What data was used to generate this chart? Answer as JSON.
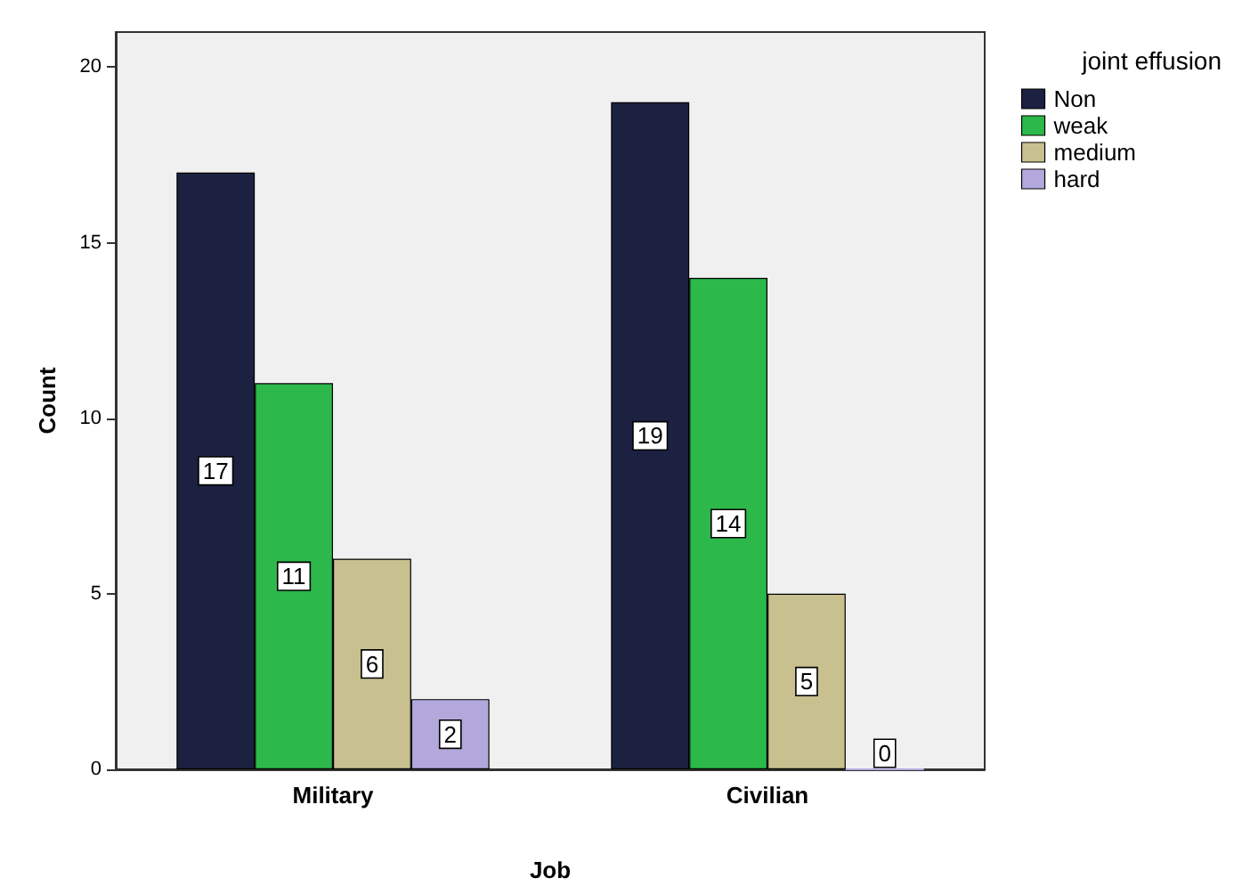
{
  "chart_data": {
    "type": "bar",
    "xlabel": "Job",
    "ylabel": "Count",
    "legend_title": "joint effusion",
    "categories": [
      "Military",
      "Civilian"
    ],
    "series": [
      {
        "name": "Non",
        "color": "#1c2142",
        "values": [
          17,
          19
        ]
      },
      {
        "name": "weak",
        "color": "#2cb84a",
        "values": [
          11,
          14
        ]
      },
      {
        "name": "medium",
        "color": "#c8c18f",
        "values": [
          6,
          5
        ]
      },
      {
        "name": "hard",
        "color": "#b3a8dc",
        "values": [
          2,
          0
        ]
      }
    ],
    "ylim": [
      0,
      21
    ],
    "yticks": [
      0,
      5,
      10,
      15,
      20
    ],
    "grid": false,
    "legend": "top right",
    "data_labels": true
  }
}
